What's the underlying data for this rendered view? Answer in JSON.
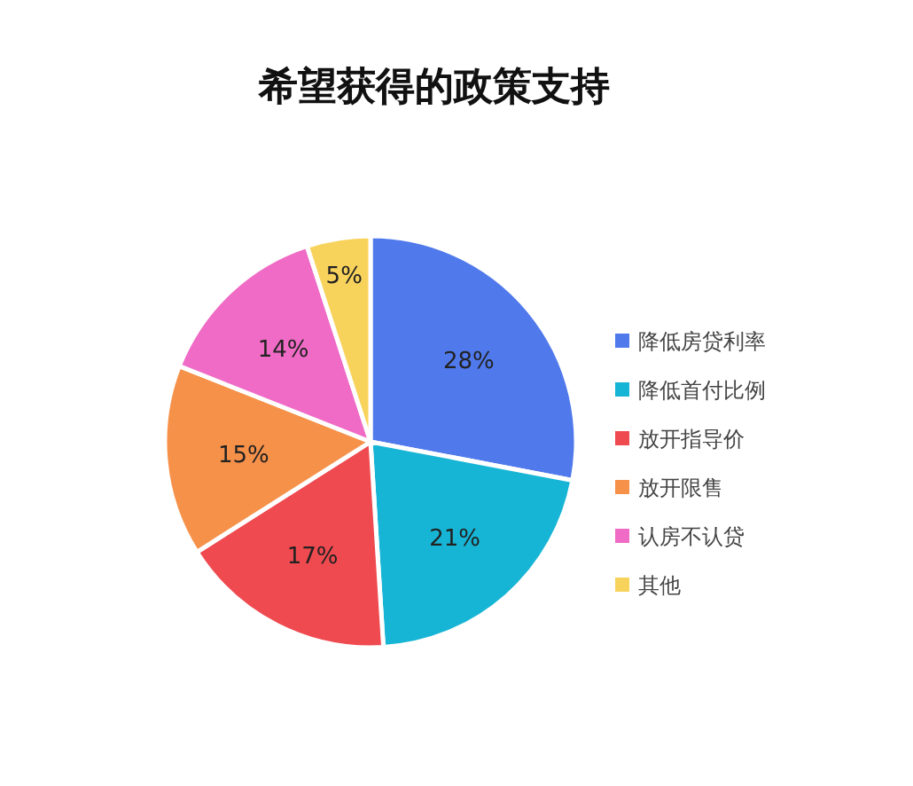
{
  "chart_data": {
    "type": "pie",
    "title": "希望获得的政策支持",
    "categories": [
      "降低房贷利率",
      "降低首付比例",
      "放开指导价",
      "放开限售",
      "认房不认贷",
      "其他"
    ],
    "values": [
      28,
      21,
      17,
      15,
      14,
      5
    ],
    "colors": [
      "#5079ec",
      "#17b5d5",
      "#ef4a4f",
      "#f6914a",
      "#ef6bc5",
      "#f8d35c"
    ],
    "value_labels": [
      "28%",
      "21%",
      "17%",
      "15%",
      "14%",
      "5%"
    ],
    "legend": "right"
  }
}
